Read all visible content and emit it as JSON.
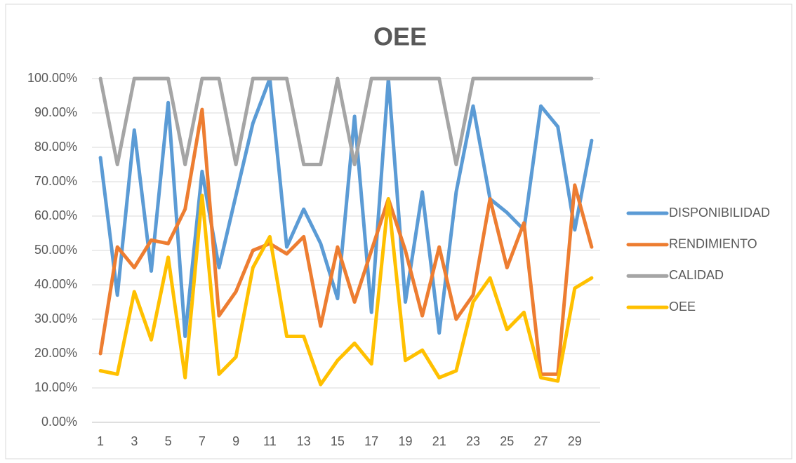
{
  "chart_data": {
    "type": "line",
    "title": "OEE",
    "categories": [
      "1",
      null,
      "3",
      null,
      "5",
      null,
      "7",
      null,
      "9",
      null,
      "11",
      null,
      "13",
      null,
      "15",
      null,
      "17",
      null,
      "19",
      null,
      "21",
      null,
      "23",
      null,
      "25",
      null,
      "27",
      null,
      "29",
      null
    ],
    "series": [
      {
        "name": "DISPONIBILIDAD",
        "color": "#5b9bd5",
        "values": [
          77,
          37,
          85,
          44,
          93,
          25,
          73,
          45,
          66,
          87,
          100,
          51,
          62,
          52,
          36,
          89,
          32,
          100,
          35,
          67,
          26,
          67,
          92,
          65,
          61,
          56,
          92,
          86,
          56,
          82
        ]
      },
      {
        "name": "RENDIMIENTO",
        "color": "#ed7d31",
        "values": [
          20,
          51,
          45,
          53,
          52,
          62,
          91,
          31,
          38,
          50,
          52,
          49,
          54,
          28,
          51,
          35,
          50,
          65,
          50,
          31,
          51,
          30,
          37,
          65,
          45,
          58,
          14,
          14,
          69,
          51
        ]
      },
      {
        "name": "CALIDAD",
        "color": "#a5a5a5",
        "values": [
          100,
          75,
          100,
          100,
          100,
          75,
          100,
          100,
          75,
          100,
          100,
          100,
          75,
          75,
          100,
          75,
          100,
          100,
          100,
          100,
          100,
          75,
          100,
          100,
          100,
          100,
          100,
          100,
          100,
          100
        ]
      },
      {
        "name": "OEE",
        "color": "#ffc000",
        "values": [
          15,
          14,
          38,
          24,
          48,
          13,
          66,
          14,
          19,
          45,
          54,
          25,
          25,
          11,
          18,
          23,
          17,
          65,
          18,
          21,
          13,
          15,
          35,
          42,
          27,
          32,
          13,
          12,
          39,
          42
        ]
      }
    ],
    "ylim": [
      0,
      100
    ],
    "yticks": [
      {
        "value": 0,
        "label": "0.00%"
      },
      {
        "value": 10,
        "label": "10.00%"
      },
      {
        "value": 20,
        "label": "20.00%"
      },
      {
        "value": 30,
        "label": "30.00%"
      },
      {
        "value": 40,
        "label": "40.00%"
      },
      {
        "value": 50,
        "label": "50.00%"
      },
      {
        "value": 60,
        "label": "60.00%"
      },
      {
        "value": 70,
        "label": "70.00%"
      },
      {
        "value": 80,
        "label": "80.00%"
      },
      {
        "value": 90,
        "label": "90.00%"
      },
      {
        "value": 100,
        "label": "100.00%"
      }
    ],
    "grid": true,
    "legend": "right"
  }
}
